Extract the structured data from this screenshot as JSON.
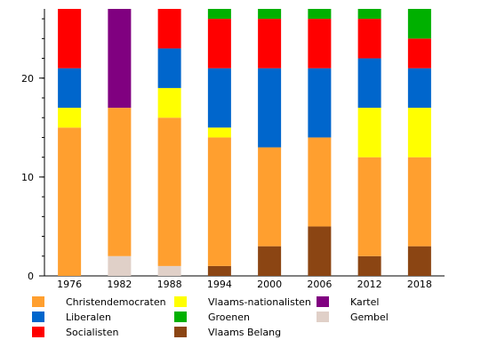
{
  "chart_data": {
    "type": "bar",
    "stacked": true,
    "title": "",
    "xlabel": "",
    "ylabel": "",
    "ylim": [
      0,
      27
    ],
    "yticks": [
      0,
      10,
      20
    ],
    "grid": false,
    "legend_position": "bottom",
    "categories": [
      "1976",
      "1982",
      "1988",
      "1994",
      "2000",
      "2006",
      "2012",
      "2018"
    ],
    "series": [
      {
        "name": "Vlaams Belang",
        "color": "#8b4513",
        "values": [
          0,
          0,
          0,
          1,
          3,
          5,
          2,
          3
        ]
      },
      {
        "name": "Gembel",
        "color": "#e0d0c8",
        "values": [
          0,
          2,
          1,
          0,
          0,
          0,
          0,
          0
        ]
      },
      {
        "name": "Christendemocraten",
        "color": "#ff9f2f",
        "values": [
          15,
          15,
          15,
          13,
          10,
          9,
          10,
          9
        ]
      },
      {
        "name": "Vlaams-nationalisten",
        "color": "#ffff00",
        "values": [
          2,
          0,
          3,
          1,
          0,
          0,
          5,
          5
        ]
      },
      {
        "name": "Liberalen",
        "color": "#0066cc",
        "values": [
          4,
          0,
          4,
          6,
          8,
          7,
          5,
          4
        ]
      },
      {
        "name": "Kartel",
        "color": "#800080",
        "values": [
          0,
          10,
          0,
          0,
          0,
          0,
          0,
          0
        ]
      },
      {
        "name": "Socialisten",
        "color": "#ff0000",
        "values": [
          6,
          0,
          4,
          5,
          5,
          5,
          4,
          3
        ]
      },
      {
        "name": "Groenen",
        "color": "#00b000",
        "values": [
          0,
          0,
          0,
          1,
          1,
          1,
          1,
          3
        ]
      }
    ],
    "legend": [
      {
        "name": "Christendemocraten",
        "color": "#ff9f2f"
      },
      {
        "name": "Liberalen",
        "color": "#0066cc"
      },
      {
        "name": "Socialisten",
        "color": "#ff0000"
      },
      {
        "name": "Vlaams-nationalisten",
        "color": "#ffff00"
      },
      {
        "name": "Groenen",
        "color": "#00b000"
      },
      {
        "name": "Vlaams Belang",
        "color": "#8b4513"
      },
      {
        "name": "Kartel",
        "color": "#800080"
      },
      {
        "name": "Gembel",
        "color": "#e0d0c8"
      }
    ]
  }
}
